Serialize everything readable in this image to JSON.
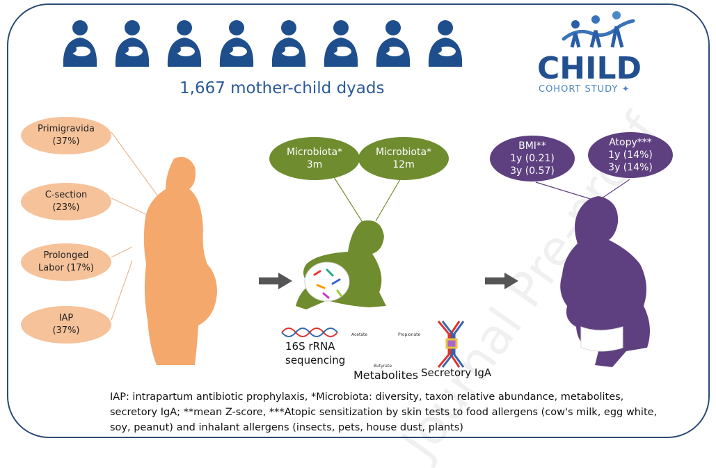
{
  "header": {
    "dyads": "1,667 mother-child dyads"
  },
  "logo": {
    "title": "CHILD",
    "subtitle": "COHORT STUDY"
  },
  "mother_factors": [
    {
      "label": "Primigravida",
      "value": "(37%)"
    },
    {
      "label": "C-section",
      "value": "(23%)"
    },
    {
      "label": "Prolonged",
      "value": "Labor (17%)"
    },
    {
      "label": "IAP",
      "value": "(37%)"
    }
  ],
  "microbiota": [
    {
      "label": "Microbiota*",
      "value": "3m"
    },
    {
      "label": "Microbiota*",
      "value": "12m"
    }
  ],
  "outcomes": [
    {
      "label": "BMI**",
      "lines": [
        "1y (0.21)",
        "3y (0.57)"
      ]
    },
    {
      "label": "Atopy***",
      "lines": [
        "1y (14%)",
        "3y (14%)"
      ]
    }
  ],
  "methods": {
    "sequencing": "16S rRNA sequencing",
    "acetate": "Acetate",
    "propionate": "Propionate",
    "butyrate": "Butyrate",
    "metabolites": "Metabolites",
    "iga": "Secretory IgA"
  },
  "caption": "IAP: intrapartum antibiotic prophylaxis, *Microbiota: diversity, taxon relative abundance, metabolites, secretory IgA; **mean Z-score, ***Atopic sensitization by skin tests to food allergens (cow's milk, egg white, soy, peanut) and inhalant allergens (insects, pets, house dust, plants)",
  "watermark": "Journal Pre-proof",
  "colors": {
    "blue": "#1f4e8c",
    "orange": "#f6c29a",
    "mother": "#f4a86b",
    "green": "#6f8c2f",
    "purple": "#5e4080",
    "arrow": "#555555"
  }
}
